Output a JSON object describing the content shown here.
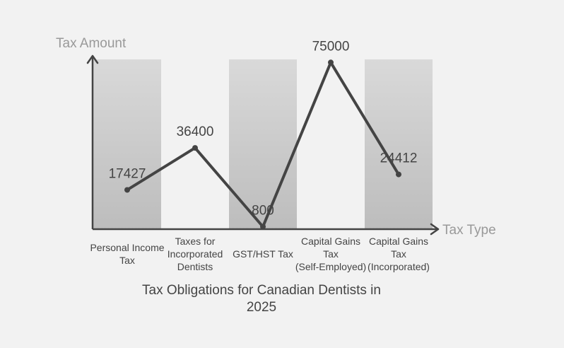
{
  "chart_data": {
    "type": "line",
    "title": "Tax Obligations for Canadian Dentists in 2025",
    "xlabel": "Tax Type",
    "ylabel": "Tax Amount",
    "categories": [
      "Personal Income Tax",
      "Taxes for Incorporated Dentists",
      "GST/HST Tax",
      "Capital Gains Tax (Self-Employed)",
      "Capital Gains Tax (Incorporated)"
    ],
    "values": [
      17427,
      36400,
      800,
      75000,
      24412
    ],
    "ylim": [
      0,
      85000
    ],
    "grid": false,
    "legend": "none",
    "alternating_bands": true,
    "colors": {
      "background": "#f2f2f2",
      "band_top": "#d9d9d9",
      "band_bottom": "#bdbdbd",
      "line": "#444444",
      "axis": "#444444",
      "axis_title": "#999999",
      "text": "#444444"
    }
  }
}
